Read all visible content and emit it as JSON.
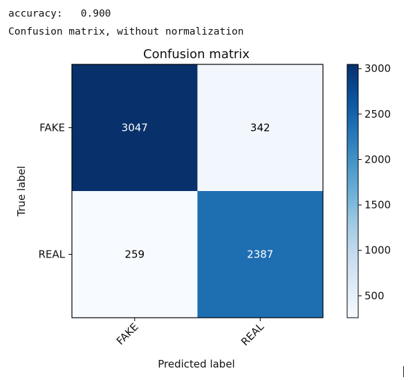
{
  "output": {
    "accuracy_line": "accuracy:   0.900",
    "caption_line": "Confusion matrix, without normalization"
  },
  "chart_data": {
    "type": "heatmap",
    "title": "Confusion matrix",
    "xlabel": "Predicted label",
    "ylabel": "True label",
    "x_categories": [
      "FAKE",
      "REAL"
    ],
    "y_categories": [
      "FAKE",
      "REAL"
    ],
    "values": [
      [
        3047,
        342
      ],
      [
        259,
        2387
      ]
    ],
    "colormap": "Blues",
    "colormap_range": [
      259,
      3047
    ],
    "colorbar_ticks": [
      500,
      1000,
      1500,
      2000,
      2500,
      3000
    ],
    "annotation_colors": {
      "light": "#ffffff",
      "dark": "#000000"
    }
  }
}
